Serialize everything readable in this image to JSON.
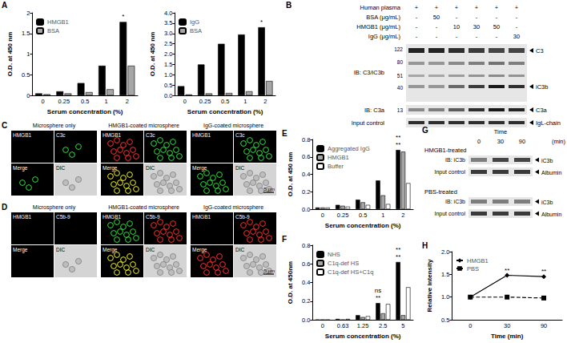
{
  "chart_data": [
    {
      "label": "A",
      "type": "bar",
      "x_label": "Serum concentration (%)",
      "y_label": "O.D. at 450 nm",
      "categories": [
        "0",
        "0.25",
        "0.5",
        "1",
        "2"
      ],
      "series": [
        {
          "name": "HMGB1",
          "color": "#000000",
          "values": [
            0.05,
            0.1,
            0.3,
            0.72,
            1.78
          ]
        },
        {
          "name": "BSA",
          "color": "#a6a6a6",
          "values": [
            0.03,
            0.05,
            0.08,
            0.15,
            0.72
          ]
        }
      ],
      "ylim": [
        0,
        2
      ],
      "yticks": [
        0,
        0.5,
        1,
        1.5,
        2
      ],
      "grid": false,
      "legend": "upper left",
      "annotations": [
        {
          "text": "*",
          "category": "2"
        }
      ]
    },
    {
      "type": "bar",
      "x_label": "Serum concentration (%)",
      "y_label": "O.D. at 450 nm",
      "categories": [
        "0",
        "0.25",
        "0.5",
        "1",
        "2"
      ],
      "series": [
        {
          "name": "IgG",
          "color": "#000000",
          "values": [
            0.45,
            1.5,
            2.5,
            2.95,
            3.3
          ]
        },
        {
          "name": "BSA",
          "color": "#a6a6a6",
          "values": [
            0.05,
            0.1,
            0.12,
            0.2,
            0.7
          ]
        }
      ],
      "ylim": [
        0,
        4
      ],
      "yticks": [
        {
          "value": 0,
          "label": "0.0"
        },
        {
          "value": 0.5,
          "label": "0.5"
        },
        {
          "value": 1,
          "label": "1.0"
        },
        {
          "value": 1.5,
          "label": "1.5"
        },
        {
          "value": 2,
          "label": "2.0"
        },
        {
          "value": 2.5,
          "label": "2.5"
        },
        {
          "value": 3,
          "label": "3.0"
        },
        {
          "value": 3.5,
          "label": "3.5"
        },
        {
          "value": 4,
          "label": "4.0"
        }
      ],
      "grid": false,
      "legend": "upper left",
      "annotations": [
        {
          "text": "*",
          "category": "2"
        }
      ]
    },
    {
      "label": "E",
      "type": "bar",
      "x_label": "Serum concentration (%)",
      "y_label": "O.D. at 450 nm",
      "categories": [
        "0",
        "0.25",
        "0.5",
        "1",
        "2"
      ],
      "series": [
        {
          "name": "Aggregated IgG",
          "color": "#000000",
          "values": [
            0.02,
            0.05,
            0.11,
            0.33,
            0.68
          ]
        },
        {
          "name": "HMGB1",
          "color": "#a6a6a6",
          "values": [
            0.02,
            0.04,
            0.08,
            0.16,
            0.66
          ]
        },
        {
          "name": "Buffer",
          "color": "#ffffff",
          "values": [
            0.02,
            0.03,
            0.05,
            0.06,
            0.3
          ]
        }
      ],
      "ylim": [
        0,
        0.8
      ],
      "yticks": [
        {
          "value": 0,
          "label": "0.0"
        },
        0.2,
        0.4,
        0.6,
        0.8
      ],
      "grid": false,
      "legend": "upper left",
      "annotations": [
        {
          "text": "**",
          "category": "2"
        },
        {
          "text": "**",
          "category": "2"
        }
      ]
    },
    {
      "label": "F",
      "type": "bar",
      "x_label": "Serum concentration (%)",
      "y_label": "O.D. at 450nm",
      "categories": [
        "0",
        "0.63",
        "1.25",
        "2.5",
        "5"
      ],
      "series": [
        {
          "name": "NHS",
          "color": "#000000",
          "values": [
            0,
            0.01,
            0.05,
            0.18,
            0.62
          ]
        },
        {
          "name": "C1q-def HS",
          "color": "#a6a6a6",
          "values": [
            0,
            0,
            0.03,
            0.07,
            0.05
          ]
        },
        {
          "name": "C1q-def HS+C1q",
          "color": "#ffffff",
          "values": [
            0,
            0.01,
            0.04,
            0.17,
            0.35
          ]
        }
      ],
      "ylim": [
        0,
        0.8
      ],
      "yticks": [
        {
          "value": 0,
          "label": "0.0"
        },
        0.2,
        0.4,
        0.6,
        0.8
      ],
      "grid": false,
      "legend": "upper left",
      "annotations": [
        {
          "text": "**",
          "category": "2.5"
        },
        {
          "text": "ns",
          "category": "2.5"
        },
        {
          "text": "**",
          "category": "5"
        },
        {
          "text": "**",
          "category": "5"
        }
      ]
    },
    {
      "label": "H",
      "type": "line",
      "x_label": "Time (min)",
      "y_label": "Relative intensity",
      "categories": [
        "0",
        "30",
        "90"
      ],
      "series": [
        {
          "name": "HMGB1",
          "color": "#000000",
          "marker": "diamond",
          "line_style": "solid",
          "values": [
            1.0,
            1.48,
            1.45
          ]
        },
        {
          "name": "PBS",
          "color": "#000000",
          "marker": "square",
          "line_style": "dashed",
          "values": [
            1.0,
            1.0,
            0.98
          ]
        }
      ],
      "ylim": [
        0.5,
        2
      ],
      "yticks": [
        0.5,
        {
          "value": 1,
          "label": "1.0"
        },
        1.5,
        {
          "value": 2,
          "label": "2.0"
        }
      ],
      "grid": false,
      "legend": "upper left",
      "annotations": [
        {
          "text": "**",
          "category": "30"
        },
        {
          "text": "**",
          "category": "90"
        }
      ]
    }
  ],
  "blot_panels": [
    {
      "label": "B",
      "conditions": [
        {
          "name": "Human plasma",
          "values": [
            "+",
            "+",
            "+",
            "+",
            "+",
            "+"
          ]
        },
        {
          "name": "BSA (μg/mL)",
          "values": [
            "-",
            "50",
            "-",
            "-",
            "-",
            "-"
          ]
        },
        {
          "name": "HMGB1 (μg/mL)",
          "values": [
            "-",
            "-",
            "10",
            "30",
            "50",
            "-"
          ]
        },
        {
          "name": "IgG (μg/mL)",
          "values": [
            "-",
            "-",
            "-",
            "-",
            "-",
            "30"
          ]
        }
      ],
      "markers": [
        122,
        80,
        51,
        40,
        13
      ],
      "blots": [
        {
          "probe": "IB: C3/iC3b",
          "bands": [
            "C3",
            "iC3b"
          ]
        },
        {
          "probe": "IB: C3a",
          "bands": [
            "C3a"
          ]
        },
        {
          "probe": "Input control",
          "bands": [
            "IgL-chain"
          ]
        }
      ]
    },
    {
      "label": "G",
      "header": "Time",
      "times": [
        "0",
        "30",
        "90"
      ],
      "unit": "(min)",
      "groups": [
        {
          "name": "HMGB1-treated",
          "blots": [
            {
              "probe": "IB: iC3b",
              "band": "iC3b"
            },
            {
              "probe": "Input control",
              "band": "Albumin"
            }
          ]
        },
        {
          "name": "PBS-treated",
          "blots": [
            {
              "probe": "IB: iC3b",
              "band": "iC3b"
            },
            {
              "probe": "Input control",
              "band": "Albumin"
            }
          ]
        }
      ]
    }
  ],
  "micrograph_panels": [
    {
      "label": "C",
      "columns": [
        "Microsphere only",
        "HMGB1-coated microsphere",
        "IgG-coated microsphere"
      ],
      "channels": [
        "HMGB1",
        "C3c",
        "Merge",
        "DIC"
      ],
      "scale_bar": "5 μm"
    },
    {
      "label": "D",
      "columns": [
        "Microsphere only",
        "HMGB1-coated microsphere",
        "IgG-coated microsphere"
      ],
      "channels": [
        "HMGB1",
        "C5b-9",
        "Merge",
        "DIC"
      ],
      "scale_bar": "5 μm"
    }
  ]
}
